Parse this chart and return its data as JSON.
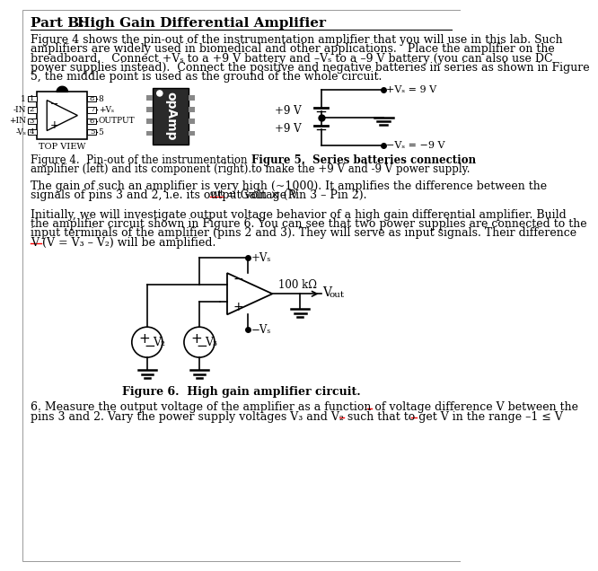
{
  "bg_color": "#ffffff",
  "title_part": "Part B:",
  "title_main": "     High Gain Differential Amplifier",
  "para1_lines": [
    "Figure 4 shows the pin-out of the instrumentation amplifier that you will use in this lab. Such",
    "amplifiers are widely used in biomedical and other applications.   Place the amplifier on the",
    "breadboard.   Connect +Vₛ to a +9 V battery and –Vₛ to a –9 V battery (you can also use DC",
    "power supplies instead).  Connect the positive and negative batteries in series as shown in Figure",
    "5, the middle point is used as the ground of the whole circuit."
  ],
  "fig4_cap1": "Figure 4.  Pin-out of the instrumentation",
  "fig4_cap2": "amplifier (left) and its component (right).",
  "fig5_cap1": "Figure 5.  Series batteries connection",
  "fig5_cap2": "to make the +9 V and -9 V power supply.",
  "para2_line1": "The gain of such an amplifier is very high (~1000). It amplifies the difference between the",
  "para2_line2a": "signals of pins 3 and 2, i.e. its output voltage V",
  "para2_line2b": "out",
  "para2_line2c": " = Gain × (Pin 3 – Pin 2).",
  "para3_lines": [
    "Initially, we will investigate output voltage behavior of a high gain differential amplifier. Build",
    "the amplifier circuit shown in Figure 6. You can see that two power supplies are connected to the",
    "input terminals of the amplifier (pins 2 and 3). They will serve as input signals. Their difference",
    "V⁤ (V⁤ = V₃ – V₂) will be amplified."
  ],
  "fig6_cap": "Figure 6.  High gain amplifier circuit.",
  "para4_line1": "6. Measure the output voltage of the amplifier as a function of voltage difference V⁤ between the",
  "para4_line2": "pins 3 and 2. Vary the power supply voltages V₃ and V₂ such that to get V⁤ in the range –1 ≤ V⁤"
}
